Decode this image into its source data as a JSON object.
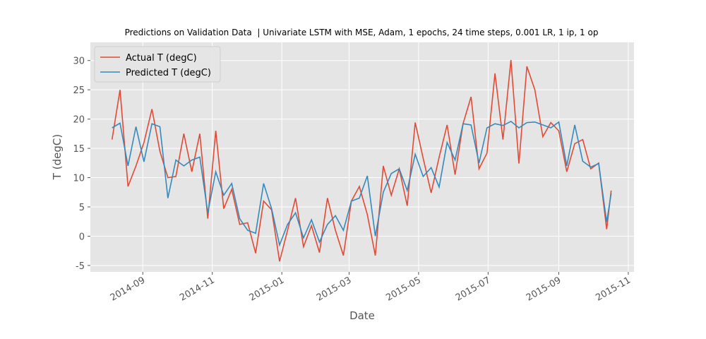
{
  "chart_data": {
    "type": "line",
    "title": "Predictions on Validation Data  | Univariate LSTM with MSE, Adam, 1 epochs, 24 time steps, 0.001 LR, 1 ip, 1 op",
    "x_label": "Date",
    "y_label": "T (degC)",
    "x": [
      "2014-08-05",
      "2014-08-12",
      "2014-08-19",
      "2014-08-26",
      "2014-09-02",
      "2014-09-09",
      "2014-09-16",
      "2014-09-23",
      "2014-09-30",
      "2014-10-07",
      "2014-10-14",
      "2014-10-21",
      "2014-10-28",
      "2014-11-04",
      "2014-11-11",
      "2014-11-18",
      "2014-11-25",
      "2014-12-02",
      "2014-12-09",
      "2014-12-16",
      "2014-12-23",
      "2014-12-30",
      "2015-01-06",
      "2015-01-13",
      "2015-01-20",
      "2015-01-27",
      "2015-02-03",
      "2015-02-10",
      "2015-02-17",
      "2015-02-24",
      "2015-03-03",
      "2015-03-10",
      "2015-03-17",
      "2015-03-24",
      "2015-03-31",
      "2015-04-07",
      "2015-04-14",
      "2015-04-21",
      "2015-04-28",
      "2015-05-05",
      "2015-05-12",
      "2015-05-19",
      "2015-05-26",
      "2015-06-02",
      "2015-06-09",
      "2015-06-16",
      "2015-06-23",
      "2015-06-30",
      "2015-07-07",
      "2015-07-14",
      "2015-07-21",
      "2015-07-28",
      "2015-08-04",
      "2015-08-11",
      "2015-08-18",
      "2015-08-25",
      "2015-09-01",
      "2015-09-08",
      "2015-09-15",
      "2015-09-22",
      "2015-09-29",
      "2015-10-06",
      "2015-10-13",
      "2015-10-17"
    ],
    "series": [
      {
        "name": "Actual T (degC)",
        "color": "#E24A33",
        "values": [
          16.5,
          25,
          8.5,
          12,
          16,
          21.7,
          14.5,
          10,
          10.2,
          17.5,
          11,
          17.5,
          3,
          18,
          4.7,
          8,
          2,
          2.3,
          -2.9,
          6,
          4.5,
          -4.3,
          1,
          6.5,
          -1.8,
          1.8,
          -2.8,
          6.5,
          1,
          -3.3,
          6,
          8.5,
          3.7,
          -3.3,
          12,
          7,
          11.5,
          5.2,
          19.4,
          13.3,
          7.4,
          13.5,
          19,
          10.5,
          19.2,
          23.8,
          11.5,
          14.2,
          27.8,
          16.5,
          30.1,
          12.4,
          29,
          25,
          17,
          19.4,
          18,
          11,
          15.8,
          16.5,
          11.5,
          12.5,
          1.2,
          7.8
        ]
      },
      {
        "name": "Predicted T (degC)",
        "color": "#348ABD",
        "values": [
          18.5,
          19.3,
          12,
          18.7,
          12.7,
          19.2,
          18.7,
          6.5,
          13,
          12,
          13,
          13.5,
          4,
          11,
          7,
          9,
          3,
          1,
          0.5,
          9,
          4.7,
          -1.5,
          2,
          4,
          -0.3,
          2.8,
          -1,
          2,
          3.5,
          1,
          6,
          6.5,
          10.3,
          0,
          7.5,
          10.7,
          11.5,
          7.8,
          14,
          10.2,
          11.7,
          8.4,
          16,
          13,
          19.2,
          19,
          12.5,
          18.5,
          19.2,
          18.9,
          19.6,
          18.5,
          19.4,
          19.5,
          19,
          18.5,
          19.5,
          12,
          19,
          12.8,
          11.8,
          12.4,
          2.4,
          7.3
        ]
      }
    ],
    "xlim": [
      "2014-07-17",
      "2015-11-06"
    ],
    "xticks": [
      {
        "value": "2014-09-01",
        "label": "2014-09"
      },
      {
        "value": "2014-11-01",
        "label": "2014-11"
      },
      {
        "value": "2015-01-01",
        "label": "2015-01"
      },
      {
        "value": "2015-03-01",
        "label": "2015-03"
      },
      {
        "value": "2015-05-01",
        "label": "2015-05"
      },
      {
        "value": "2015-07-01",
        "label": "2015-07"
      },
      {
        "value": "2015-09-01",
        "label": "2015-09"
      },
      {
        "value": "2015-11-01",
        "label": "2015-11"
      }
    ],
    "ylim": [
      -6.1,
      33.1
    ],
    "yticks": [
      -5,
      0,
      5,
      10,
      15,
      20,
      25,
      30
    ],
    "grid": true,
    "legend": "upper left"
  }
}
